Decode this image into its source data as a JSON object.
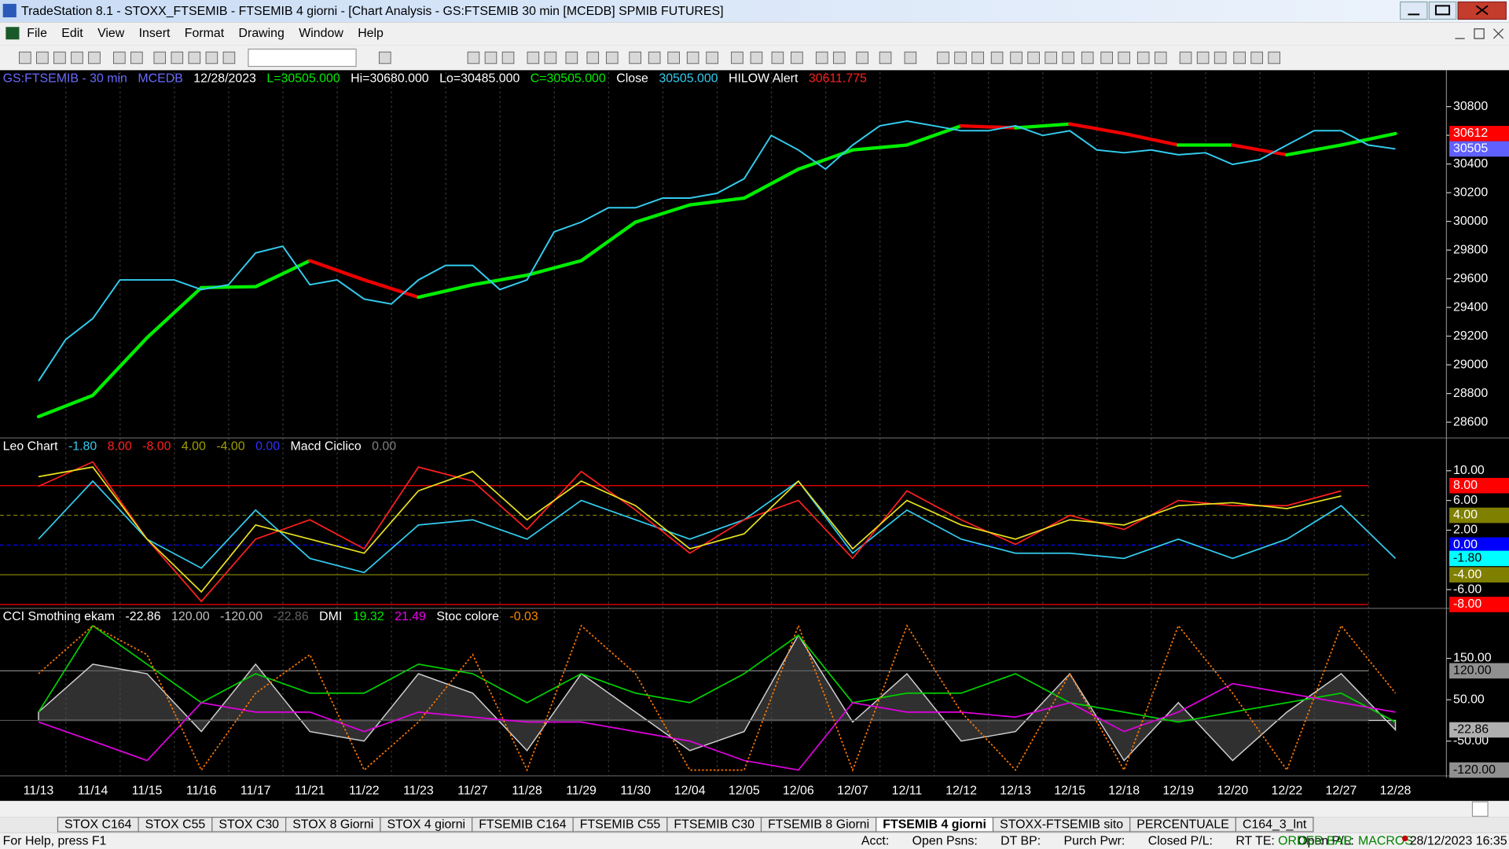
{
  "title_bar": {
    "title": "TradeStation 8.1 - STOXX_FTSEMIB - FTSEMIB  4 giorni - [Chart Analysis - GS:FTSEMIB  30 min  [MCEDB] SPMIB FUTURES]"
  },
  "menu": [
    "File",
    "Edit",
    "View",
    "Insert",
    "Format",
    "Drawing",
    "Window",
    "Help"
  ],
  "chart": {
    "dates": [
      "11/13",
      "11/14",
      "11/15",
      "11/16",
      "11/17",
      "11/21",
      "11/22",
      "11/23",
      "11/27",
      "11/28",
      "11/29",
      "11/30",
      "12/04",
      "12/05",
      "12/06",
      "12/07",
      "12/11",
      "12/12",
      "12/13",
      "12/15",
      "12/18",
      "12/19",
      "12/20",
      "12/22",
      "12/27",
      "12/28"
    ],
    "price": {
      "header": [
        {
          "text": "GS:FTSEMIB - 30 min",
          "color": "#6a6aff"
        },
        {
          "text": "MCEDB",
          "color": "#6a6aff"
        },
        {
          "text": "12/28/2023",
          "color": "#ffffff"
        },
        {
          "text": "L=30505.000",
          "color": "#00ee00"
        },
        {
          "text": "Hi=30680.000",
          "color": "#ffffff"
        },
        {
          "text": "Lo=30485.000",
          "color": "#ffffff"
        },
        {
          "text": "C=30505.000",
          "color": "#00ee00"
        },
        {
          "text": "Close",
          "color": "#ffffff"
        },
        {
          "text": "30505.000",
          "color": "#33ccee"
        },
        {
          "text": "HILOW Alert",
          "color": "#ffffff"
        },
        {
          "text": "30611.775",
          "color": "#ff2020"
        }
      ],
      "ylim": [
        28490,
        31040
      ],
      "yticks": [
        30800,
        30600,
        30400,
        30200,
        30000,
        29800,
        29600,
        29400,
        29200,
        29000,
        28800,
        28600
      ],
      "close": {
        "color": "#33ccee",
        "values": [
          28887,
          29176,
          29323,
          29592,
          29592,
          29592,
          29525,
          29558,
          29780,
          29827,
          29558,
          29592,
          29458,
          29424,
          29592,
          29693,
          29693,
          29525,
          29592,
          29927,
          29995,
          30095,
          30095,
          30162,
          30162,
          30196,
          30297,
          30599,
          30498,
          30364,
          30532,
          30666,
          30699,
          30666,
          30632,
          30632,
          30666,
          30599,
          30632,
          30498,
          30478,
          30498,
          30464,
          30478,
          30397,
          30431,
          30532,
          30632,
          30632,
          30532,
          30505
        ]
      },
      "average": {
        "up_color": "#00ee00",
        "down_color": "#ee0000",
        "values": [
          28639,
          28787,
          29189,
          29538,
          29545,
          29726,
          29592,
          29471,
          29558,
          29625,
          29726,
          29995,
          30115,
          30162,
          30364,
          30498,
          30532,
          30666,
          30652,
          30679,
          30612,
          30532,
          30532,
          30464,
          30532,
          30612
        ]
      },
      "badges": [
        {
          "value": 30612,
          "color": "#ff0000",
          "text_color": "#ffffff"
        },
        {
          "value": 30505,
          "color": "#6060ff",
          "text_color": "#ffffff"
        }
      ]
    },
    "leo": {
      "header": [
        {
          "text": "Leo Chart",
          "color": "#ffffff"
        },
        {
          "text": "-1.80",
          "color": "#33ccee"
        },
        {
          "text": "8.00",
          "color": "#ff2020"
        },
        {
          "text": "-8.00",
          "color": "#ff2020"
        },
        {
          "text": "4.00",
          "color": "#a0a000"
        },
        {
          "text": "-4.00",
          "color": "#a0a000"
        },
        {
          "text": "0.00",
          "color": "#3030ff"
        },
        {
          "text": "Macd Ciclico",
          "color": "#ffffff"
        },
        {
          "text": "0.00",
          "color": "#808080"
        }
      ],
      "ylim": [
        -8.52,
        14.02
      ],
      "yticks": [
        {
          "value": 10,
          "label": "10.00"
        },
        {
          "value": 6,
          "label": "6.00"
        },
        {
          "value": 2,
          "label": "2.00"
        },
        {
          "value": -6,
          "label": "-6.00"
        }
      ],
      "levels": [
        {
          "value": 8,
          "label": "8.00",
          "color": "#ff0000",
          "text_color": "#ffffff",
          "dashed": false
        },
        {
          "value": 4,
          "label": "4.00",
          "color": "#808000",
          "text_color": "#ffffff",
          "dashed": true
        },
        {
          "value": 0,
          "label": "0.00",
          "color": "#0000ff",
          "text_color": "#ffffff",
          "dashed": true
        },
        {
          "value": -4,
          "label": "-4.00",
          "color": "#808000",
          "text_color": "#ffffff",
          "dashed": false
        },
        {
          "value": -8,
          "label": "-8.00",
          "color": "#ff0000",
          "text_color": "#ffffff",
          "dashed": false
        }
      ],
      "badge": {
        "value": -1.8,
        "label": "-1.80",
        "color": "#00ffff",
        "text_color": "#000000"
      },
      "series": [
        {
          "color": "#33ccee",
          "values": [
            0.8,
            8.6,
            0.8,
            -3.1,
            4.7,
            -1.8,
            -3.7,
            2.7,
            3.4,
            0.8,
            6.0,
            3.4,
            0.8,
            3.4,
            8.6,
            -1.1,
            4.7,
            0.8,
            -1.1,
            -1.1,
            -1.8,
            0.8,
            -1.8,
            0.8,
            5.3,
            -1.8
          ]
        },
        {
          "color": "#ff2020",
          "values": [
            7.9,
            11.2,
            0.8,
            -7.6,
            0.8,
            3.4,
            -0.5,
            10.5,
            8.6,
            2.1,
            9.9,
            4.7,
            -1.1,
            3.4,
            6.0,
            -1.8,
            7.3,
            3.4,
            0.1,
            4.0,
            2.1,
            6.0,
            5.3,
            5.3,
            7.3,
            null
          ]
        },
        {
          "color": "#e8e020",
          "values": [
            9.2,
            10.5,
            0.8,
            -6.3,
            2.7,
            0.8,
            -1.1,
            7.3,
            9.9,
            3.4,
            8.6,
            5.3,
            -0.5,
            1.5,
            8.6,
            -0.5,
            6.0,
            2.7,
            0.8,
            3.4,
            2.7,
            5.3,
            5.7,
            4.9,
            6.6,
            null
          ]
        }
      ]
    },
    "cci": {
      "header": [
        {
          "text": "CCI Smothing ekam",
          "color": "#ffffff"
        },
        {
          "text": "-22.86",
          "color": "#ffffff"
        },
        {
          "text": "120.00",
          "color": "#c0c0c0"
        },
        {
          "text": "-120.00",
          "color": "#c0c0c0"
        },
        {
          "text": "-22.86",
          "color": "#606060"
        },
        {
          "text": "DMI",
          "color": "#ffffff"
        },
        {
          "text": "19.32",
          "color": "#00ee00"
        },
        {
          "text": "21.49",
          "color": "#ee00ee"
        },
        {
          "text": "Stoc colore",
          "color": "#ffffff"
        },
        {
          "text": "-0.03",
          "color": "#ff8c00"
        }
      ],
      "ylim": [
        -134,
        264
      ],
      "yticks": [
        {
          "value": 150,
          "label": "150.00"
        },
        {
          "value": 50,
          "label": "50.00"
        },
        {
          "value": -50,
          "label": "-50.00"
        }
      ],
      "levels": [
        {
          "value": 120,
          "label": "120.00",
          "color": "#909090",
          "text_color": "#000000",
          "dashed": false
        },
        {
          "value": -120,
          "label": "-120.00",
          "color": "#909090",
          "text_color": "#000000",
          "dashed": false
        }
      ],
      "badge": {
        "value": -22.86,
        "label": "-22.86",
        "color": "#b0b0b0",
        "text_color": "#000000"
      },
      "histogram": {
        "color": "#d0d0d0",
        "values": [
          20,
          136,
          113,
          -27,
          136,
          -27,
          -50,
          113,
          66,
          -73,
          113,
          20,
          -73,
          -27,
          206,
          -4,
          113,
          -50,
          -27,
          113,
          -97,
          43,
          -97,
          20,
          113,
          -22.86
        ]
      },
      "series": [
        {
          "color": "#00d000",
          "values": [
            20,
            229,
            136,
            43,
            113,
            66,
            66,
            136,
            113,
            43,
            113,
            66,
            43,
            113,
            206,
            43,
            66,
            66,
            113,
            43,
            20,
            -4,
            20,
            43,
            66,
            -4
          ]
        },
        {
          "color": "#e000e0",
          "values": [
            -4,
            -50,
            -97,
            43,
            20,
            20,
            -27,
            20,
            8,
            -4,
            -4,
            -27,
            -50,
            -97,
            -120,
            43,
            20,
            20,
            8,
            43,
            -27,
            20,
            89,
            66,
            43,
            20
          ]
        },
        {
          "color": "#ff7800",
          "dotted": true,
          "values": [
            113,
            229,
            159,
            -120,
            66,
            159,
            -120,
            -4,
            159,
            -120,
            229,
            113,
            -120,
            -120,
            229,
            -120,
            229,
            20,
            -120,
            113,
            -120,
            229,
            66,
            -120,
            229,
            66
          ]
        }
      ]
    }
  },
  "tabs": [
    "STOX C164",
    "STOX C55",
    "STOX  C30",
    "STOX  8 Giorni",
    "STOX 4 giorni",
    "FTSEMIB C164",
    "FTSEMIB C55",
    "FTSEMIB C30",
    "FTSEMIB  8 Giorni",
    "FTSEMIB  4 giorni",
    "STOXX-FTSEMIB sito",
    "PERCENTUALE",
    "C164_3_lnt"
  ],
  "active_tab": 9,
  "status": {
    "help": "For Help, press F1",
    "fields": [
      "Acct:",
      "Open Psns:",
      "DT BP:",
      "Purch Pwr:",
      "Closed P/L:",
      "RT TE:",
      "Open P/L:"
    ],
    "order_bar": "ORDER BAR",
    "macros": "MACROS",
    "datetime": "28/12/2023 16:35"
  }
}
